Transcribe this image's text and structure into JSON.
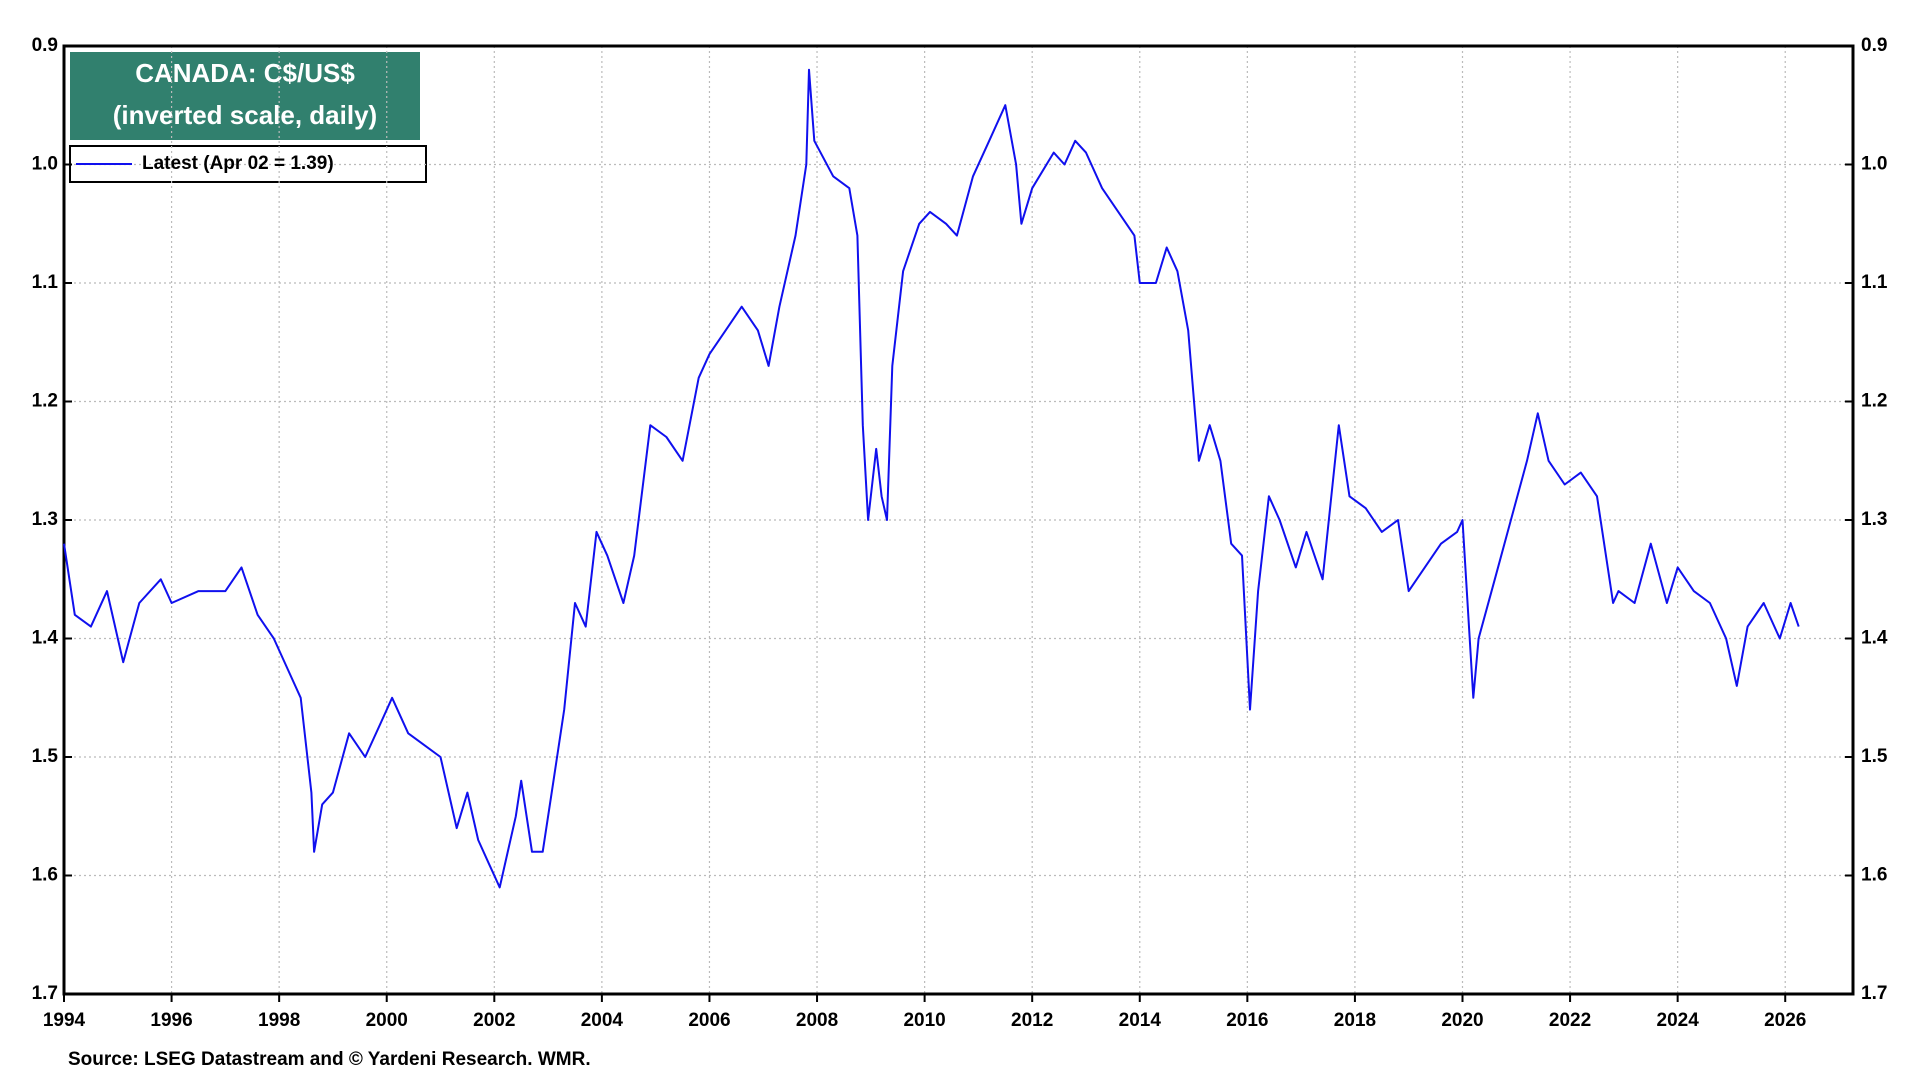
{
  "chart_data": {
    "type": "line",
    "title": "CANADA: C$/US$",
    "subtitle": "(inverted scale, daily)",
    "source": "Source: LSEG Datastream and © Yardeni Research. WMR.",
    "inverted": true,
    "grid": true,
    "legend": "upper left",
    "xlim": [
      1994,
      2027.26
    ],
    "xticks": [
      1994,
      1996,
      1998,
      2000,
      2002,
      2004,
      2006,
      2008,
      2010,
      2012,
      2014,
      2016,
      2018,
      2020,
      2022,
      2024,
      2026
    ],
    "ylim": [
      0.9,
      1.7
    ],
    "yticks": [
      {
        "value": 0.9,
        "label": "0.9"
      },
      {
        "value": 1.0,
        "label": "1.0"
      },
      {
        "value": 1.1,
        "label": "1.1"
      },
      {
        "value": 1.2,
        "label": "1.2"
      },
      {
        "value": 1.3,
        "label": "1.3"
      },
      {
        "value": 1.4,
        "label": "1.4"
      },
      {
        "value": 1.5,
        "label": "1.5"
      },
      {
        "value": 1.6,
        "label": "1.6"
      },
      {
        "value": 1.7,
        "label": "1.7"
      }
    ],
    "x": [
      1994.0,
      1994.2,
      1994.5,
      1994.8,
      1995.0,
      1995.1,
      1995.4,
      1995.8,
      1996.0,
      1996.5,
      1997.0,
      1997.3,
      1997.6,
      1997.9,
      1998.2,
      1998.4,
      1998.6,
      1998.65,
      1998.8,
      1999.0,
      1999.3,
      1999.6,
      1999.9,
      2000.1,
      2000.4,
      2000.7,
      2001.0,
      2001.3,
      2001.5,
      2001.7,
      2001.9,
      2002.0,
      2002.1,
      2002.4,
      2002.5,
      2002.7,
      2002.9,
      2003.1,
      2003.3,
      2003.5,
      2003.7,
      2003.9,
      2004.1,
      2004.4,
      2004.6,
      2004.9,
      2005.2,
      2005.5,
      2005.8,
      2006.0,
      2006.3,
      2006.6,
      2006.9,
      2007.1,
      2007.3,
      2007.6,
      2007.8,
      2007.85,
      2007.95,
      2008.3,
      2008.6,
      2008.75,
      2008.85,
      2008.95,
      2009.1,
      2009.2,
      2009.3,
      2009.4,
      2009.6,
      2009.9,
      2010.1,
      2010.4,
      2010.6,
      2010.9,
      2011.2,
      2011.5,
      2011.7,
      2011.8,
      2012.0,
      2012.4,
      2012.6,
      2012.8,
      2013.0,
      2013.3,
      2013.6,
      2013.9,
      2014.0,
      2014.3,
      2014.5,
      2014.7,
      2014.9,
      2015.1,
      2015.3,
      2015.5,
      2015.7,
      2015.9,
      2016.05,
      2016.2,
      2016.4,
      2016.6,
      2016.9,
      2017.1,
      2017.4,
      2017.7,
      2017.9,
      2018.2,
      2018.5,
      2018.8,
      2019.0,
      2019.3,
      2019.6,
      2019.9,
      2020.0,
      2020.2,
      2020.3,
      2020.6,
      2020.9,
      2021.2,
      2021.4,
      2021.6,
      2021.9,
      2022.2,
      2022.5,
      2022.8,
      2022.9,
      2023.2,
      2023.5,
      2023.8,
      2024.0,
      2024.3,
      2024.6,
      2024.9,
      2025.1,
      2025.3,
      2025.6,
      2025.9,
      2026.1,
      2026.25
    ],
    "series": [
      {
        "name": "Latest (Apr 02 = 1.39)",
        "color": "#1010ee",
        "values": [
          1.32,
          1.38,
          1.39,
          1.36,
          1.4,
          1.42,
          1.37,
          1.35,
          1.37,
          1.36,
          1.36,
          1.34,
          1.38,
          1.4,
          1.43,
          1.45,
          1.53,
          1.58,
          1.54,
          1.53,
          1.48,
          1.5,
          1.47,
          1.45,
          1.48,
          1.49,
          1.5,
          1.56,
          1.53,
          1.57,
          1.59,
          1.6,
          1.61,
          1.55,
          1.52,
          1.58,
          1.58,
          1.52,
          1.46,
          1.37,
          1.39,
          1.31,
          1.33,
          1.37,
          1.33,
          1.22,
          1.23,
          1.25,
          1.18,
          1.16,
          1.14,
          1.12,
          1.14,
          1.17,
          1.12,
          1.06,
          1.0,
          0.92,
          0.98,
          1.01,
          1.02,
          1.06,
          1.22,
          1.3,
          1.24,
          1.28,
          1.3,
          1.17,
          1.09,
          1.05,
          1.04,
          1.05,
          1.06,
          1.01,
          0.98,
          0.95,
          1.0,
          1.05,
          1.02,
          0.99,
          1.0,
          0.98,
          0.99,
          1.02,
          1.04,
          1.06,
          1.1,
          1.1,
          1.07,
          1.09,
          1.14,
          1.25,
          1.22,
          1.25,
          1.32,
          1.33,
          1.46,
          1.36,
          1.28,
          1.3,
          1.34,
          1.31,
          1.35,
          1.22,
          1.28,
          1.29,
          1.31,
          1.3,
          1.36,
          1.34,
          1.32,
          1.31,
          1.3,
          1.45,
          1.4,
          1.35,
          1.3,
          1.25,
          1.21,
          1.25,
          1.27,
          1.26,
          1.28,
          1.37,
          1.36,
          1.37,
          1.32,
          1.37,
          1.34,
          1.36,
          1.37,
          1.4,
          1.44,
          1.39,
          1.37,
          1.4,
          1.37,
          1.39
        ]
      }
    ]
  }
}
